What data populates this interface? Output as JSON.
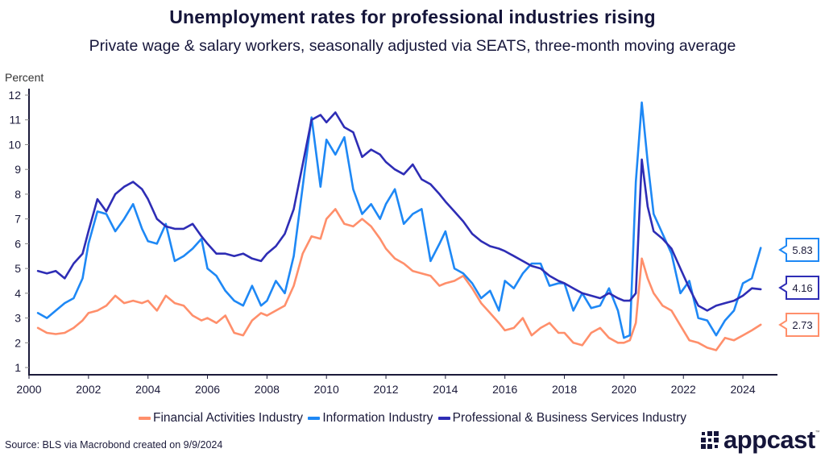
{
  "chart_data": {
    "type": "line",
    "title": "Unemployment rates for professional industries rising",
    "subtitle": "Private wage & salary workers, seasonally adjusted via SEATS, three-month moving average",
    "ylabel": "Percent",
    "xlabel": "",
    "xlim": [
      2000,
      2025.2
    ],
    "ylim": [
      1,
      12
    ],
    "x_ticks": [
      "2000",
      "2002",
      "2004",
      "2006",
      "2008",
      "2010",
      "2012",
      "2014",
      "2016",
      "2018",
      "2020",
      "2022",
      "2024"
    ],
    "y_ticks": [
      "1",
      "2",
      "3",
      "4",
      "5",
      "6",
      "7",
      "8",
      "9",
      "10",
      "11",
      "12"
    ],
    "grid": false,
    "legend_position": "bottom",
    "x": [
      2000.3,
      2000.6,
      2000.9,
      2001.2,
      2001.5,
      2001.8,
      2002.0,
      2002.3,
      2002.6,
      2002.9,
      2003.2,
      2003.5,
      2003.8,
      2004.0,
      2004.3,
      2004.6,
      2004.9,
      2005.2,
      2005.5,
      2005.8,
      2006.0,
      2006.3,
      2006.6,
      2006.9,
      2007.2,
      2007.5,
      2007.8,
      2008.0,
      2008.3,
      2008.6,
      2008.9,
      2009.2,
      2009.5,
      2009.8,
      2010.0,
      2010.3,
      2010.6,
      2010.9,
      2011.2,
      2011.5,
      2011.8,
      2012.0,
      2012.3,
      2012.6,
      2012.9,
      2013.2,
      2013.5,
      2013.8,
      2014.0,
      2014.3,
      2014.6,
      2014.9,
      2015.2,
      2015.5,
      2015.8,
      2016.0,
      2016.3,
      2016.6,
      2016.9,
      2017.2,
      2017.5,
      2017.8,
      2018.0,
      2018.3,
      2018.6,
      2018.9,
      2019.2,
      2019.5,
      2019.8,
      2020.0,
      2020.2,
      2020.4,
      2020.6,
      2020.8,
      2021.0,
      2021.3,
      2021.6,
      2021.9,
      2022.2,
      2022.5,
      2022.8,
      2023.1,
      2023.4,
      2023.7,
      2024.0,
      2024.3,
      2024.6
    ],
    "series": [
      {
        "name": "Financial Activities Industry",
        "color": "#ff8f6b",
        "last_value": "2.73",
        "values": [
          2.6,
          2.4,
          2.35,
          2.4,
          2.6,
          2.9,
          3.2,
          3.3,
          3.5,
          3.9,
          3.6,
          3.7,
          3.6,
          3.7,
          3.3,
          3.9,
          3.6,
          3.5,
          3.1,
          2.9,
          3.0,
          2.8,
          3.1,
          2.4,
          2.3,
          2.9,
          3.2,
          3.1,
          3.3,
          3.5,
          4.3,
          5.6,
          6.3,
          6.2,
          7.0,
          7.4,
          6.8,
          6.7,
          7.0,
          6.7,
          6.2,
          5.8,
          5.4,
          5.2,
          4.9,
          4.8,
          4.7,
          4.3,
          4.4,
          4.5,
          4.7,
          4.2,
          3.6,
          3.2,
          2.8,
          2.5,
          2.6,
          3.0,
          2.3,
          2.6,
          2.8,
          2.4,
          2.4,
          2.0,
          1.9,
          2.4,
          2.6,
          2.2,
          2.0,
          2.0,
          2.1,
          2.8,
          5.4,
          4.6,
          4.0,
          3.5,
          3.3,
          2.7,
          2.1,
          2.0,
          1.8,
          1.7,
          2.2,
          2.1,
          2.3,
          2.5,
          2.73
        ]
      },
      {
        "name": "Information Industry",
        "color": "#1e88f5",
        "last_value": "5.83",
        "values": [
          3.2,
          3.0,
          3.3,
          3.6,
          3.8,
          4.6,
          6.0,
          7.3,
          7.2,
          6.5,
          7.0,
          7.6,
          6.6,
          6.1,
          6.0,
          6.8,
          5.3,
          5.5,
          5.8,
          6.2,
          5.0,
          4.7,
          4.1,
          3.7,
          3.5,
          4.3,
          3.5,
          3.7,
          4.5,
          4.0,
          5.5,
          8.3,
          11.1,
          8.3,
          10.2,
          9.6,
          10.3,
          8.2,
          7.2,
          7.6,
          7.0,
          7.6,
          8.2,
          6.8,
          7.2,
          7.4,
          5.3,
          6.0,
          6.5,
          5.0,
          4.8,
          4.4,
          3.8,
          4.1,
          3.3,
          4.5,
          4.2,
          4.8,
          5.2,
          5.2,
          4.3,
          4.4,
          4.4,
          3.3,
          4.0,
          3.4,
          3.5,
          4.2,
          3.3,
          2.2,
          2.3,
          8.5,
          11.7,
          9.3,
          7.2,
          6.4,
          5.6,
          4.0,
          4.5,
          3.0,
          2.9,
          2.3,
          2.9,
          3.3,
          4.4,
          4.6,
          5.83
        ]
      },
      {
        "name": "Professional & Business Services Industry",
        "color": "#2e2db5",
        "last_value": "4.16",
        "values": [
          4.9,
          4.8,
          4.9,
          4.6,
          5.2,
          5.6,
          6.5,
          7.8,
          7.3,
          8.0,
          8.3,
          8.5,
          8.2,
          7.8,
          7.0,
          6.7,
          6.6,
          6.6,
          6.8,
          6.3,
          6.0,
          5.6,
          5.6,
          5.5,
          5.6,
          5.4,
          5.3,
          5.6,
          5.9,
          6.4,
          7.4,
          9.2,
          11.0,
          11.2,
          10.9,
          11.3,
          10.7,
          10.5,
          9.5,
          9.8,
          9.6,
          9.3,
          9.0,
          8.8,
          9.2,
          8.6,
          8.4,
          8.0,
          7.7,
          7.3,
          6.9,
          6.4,
          6.1,
          5.9,
          5.8,
          5.7,
          5.5,
          5.3,
          5.1,
          5.0,
          4.7,
          4.5,
          4.4,
          4.2,
          4.0,
          3.9,
          3.8,
          4.0,
          3.8,
          3.7,
          3.7,
          4.0,
          9.4,
          7.5,
          6.5,
          6.2,
          5.8,
          5.0,
          4.2,
          3.5,
          3.3,
          3.5,
          3.6,
          3.7,
          3.9,
          4.2,
          4.16
        ]
      }
    ],
    "source": "Source: BLS via Macrobond created on 9/9/2024"
  },
  "brand": {
    "logo_text": "appcast",
    "logo_tm": "™",
    "dark": "#15153a"
  }
}
